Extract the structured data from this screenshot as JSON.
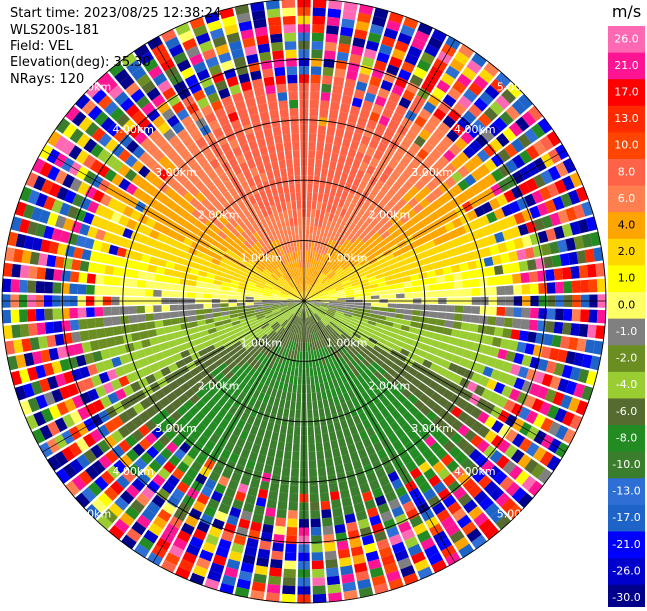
{
  "info": {
    "start_time": "Start time: 2023/08/25 12:38:24",
    "station": "WLS200s-181",
    "field": "Field: VEL",
    "elevation": "Elevation(deg): 35.30",
    "nrays": "NRays: 120"
  },
  "chart_data": {
    "type": "heatmap",
    "projection": "polar-ppi",
    "field": "VEL",
    "units": "m/s",
    "n_rays": 120,
    "max_range_km": 5.0,
    "range_rings_km": [
      1,
      2,
      3,
      4,
      5
    ],
    "ring_labels": [
      "1.00km",
      "2.00km",
      "3.00km",
      "4.00km",
      "5.00km"
    ],
    "colorbar": {
      "unit_label": "m/s",
      "tick_labels": [
        "26.0",
        "21.0",
        "17.0",
        "13.0",
        "10.0",
        "8.0",
        "6.0",
        "4.0",
        "2.0",
        "1.0",
        "0.0",
        "-1.0",
        "-2.0",
        "-4.0",
        "-6.0",
        "-8.0",
        "-10.0",
        "-13.0",
        "-17.0",
        "-21.0",
        "-26.0",
        "-30.0"
      ],
      "colors": [
        "#ff69b4",
        "#ff1493",
        "#ff0000",
        "#ff2a00",
        "#ff4500",
        "#ff6347",
        "#ff7f50",
        "#ffa500",
        "#ffd700",
        "#ffff00",
        "#ffff66",
        "#808080",
        "#6b8e23",
        "#9acd32",
        "#556b2f",
        "#228b22",
        "#3a7d2c",
        "#2e6fd6",
        "#1e64c8",
        "#0000ff",
        "#0000cd",
        "#00008b",
        "#000080",
        "#191970"
      ]
    },
    "wind_pattern": {
      "toward_radar_sector": "north",
      "away_from_radar_sector": "south",
      "near_zero_band": "east-west"
    }
  }
}
